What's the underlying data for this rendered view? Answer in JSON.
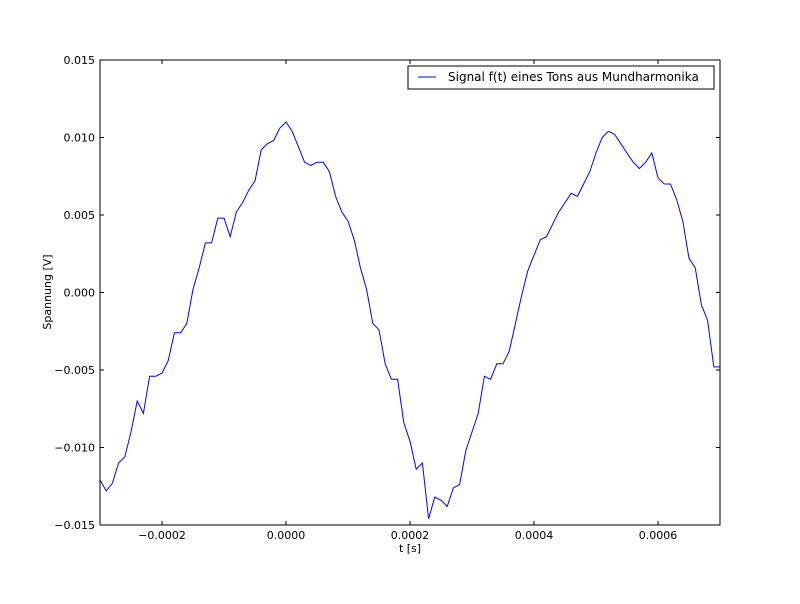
{
  "chart_data": {
    "type": "line",
    "title": "",
    "xlabel": "t [s]",
    "ylabel": "Spannung [V]",
    "xlim": [
      -0.0003,
      0.0007
    ],
    "ylim": [
      -0.015,
      0.015
    ],
    "xticks": [
      -0.0002,
      0.0,
      0.0002,
      0.0004,
      0.0006
    ],
    "xtick_labels": [
      "−0.0002",
      "0.0000",
      "0.0002",
      "0.0004",
      "0.0006"
    ],
    "yticks": [
      -0.015,
      -0.01,
      -0.005,
      0.0,
      0.005,
      0.01,
      0.015
    ],
    "ytick_labels": [
      "−0.015",
      "−0.010",
      "−0.005",
      "0.000",
      "0.005",
      "0.010",
      "0.015"
    ],
    "grid": false,
    "legend_position": "top-right",
    "series": [
      {
        "name": "Signal f(t) eines Tons aus Mundharmonika",
        "color": "#0000ff",
        "x": [
          -0.0003,
          -0.00029,
          -0.00028,
          -0.00027,
          -0.00026,
          -0.00025,
          -0.00024,
          -0.00023,
          -0.00022,
          -0.00021,
          -0.0002,
          -0.00019,
          -0.00018,
          -0.00017,
          -0.00016,
          -0.00015,
          -0.00014,
          -0.00013,
          -0.00012,
          -0.00011,
          -0.0001,
          -9e-05,
          -8e-05,
          -7e-05,
          -6e-05,
          -5e-05,
          -4e-05,
          -3e-05,
          -2e-05,
          -1e-05,
          0.0,
          1e-05,
          2e-05,
          3e-05,
          4e-05,
          5e-05,
          6e-05,
          7e-05,
          8e-05,
          9e-05,
          0.0001,
          0.00011,
          0.00012,
          0.00013,
          0.00014,
          0.00015,
          0.00016,
          0.00017,
          0.00018,
          0.00019,
          0.0002,
          0.00021,
          0.00022,
          0.00023,
          0.00024,
          0.00025,
          0.00026,
          0.00027,
          0.00028,
          0.00029,
          0.0003,
          0.00031,
          0.00032,
          0.00033,
          0.00034,
          0.00035,
          0.00036,
          0.00037,
          0.00038,
          0.00039,
          0.0004,
          0.00041,
          0.00042,
          0.00043,
          0.00044,
          0.00045,
          0.00046,
          0.00047,
          0.00048,
          0.00049,
          0.0005,
          0.00051,
          0.00052,
          0.00053,
          0.00054,
          0.00055,
          0.00056,
          0.00057,
          0.00058,
          0.00059,
          0.0006,
          0.00061,
          0.00062,
          0.00063,
          0.00064,
          0.00065,
          0.00066,
          0.00067,
          0.00068,
          0.00069,
          0.0007
        ],
        "y": [
          -0.0121,
          -0.0128,
          -0.0123,
          -0.011,
          -0.0106,
          -0.009,
          -0.007,
          -0.0078,
          -0.0054,
          -0.0054,
          -0.0052,
          -0.0044,
          -0.0026,
          -0.0026,
          -0.002,
          0.0002,
          0.0016,
          0.0032,
          0.0032,
          0.0048,
          0.0048,
          0.0036,
          0.0052,
          0.0058,
          0.0066,
          0.0072,
          0.0092,
          0.0096,
          0.0098,
          0.0106,
          0.011,
          0.0104,
          0.0094,
          0.0084,
          0.0082,
          0.0084,
          0.0084,
          0.0078,
          0.0062,
          0.0052,
          0.0046,
          0.0034,
          0.0016,
          0.0002,
          -0.002,
          -0.0024,
          -0.0046,
          -0.0056,
          -0.0056,
          -0.0084,
          -0.0096,
          -0.0114,
          -0.011,
          -0.0146,
          -0.0132,
          -0.0134,
          -0.0138,
          -0.0126,
          -0.0124,
          -0.0102,
          -0.009,
          -0.0078,
          -0.0054,
          -0.0056,
          -0.0046,
          -0.0046,
          -0.0038,
          -0.002,
          -0.0002,
          0.0014,
          0.0024,
          0.0034,
          0.0036,
          0.0044,
          0.0052,
          0.0058,
          0.0064,
          0.0062,
          0.007,
          0.0078,
          0.009,
          0.01,
          0.0104,
          0.0102,
          0.0096,
          0.009,
          0.0084,
          0.008,
          0.0084,
          0.009,
          0.0074,
          0.007,
          0.007,
          0.006,
          0.0046,
          0.0022,
          0.0016,
          -0.0008,
          -0.0018,
          -0.0048,
          -0.0048
        ]
      }
    ]
  }
}
